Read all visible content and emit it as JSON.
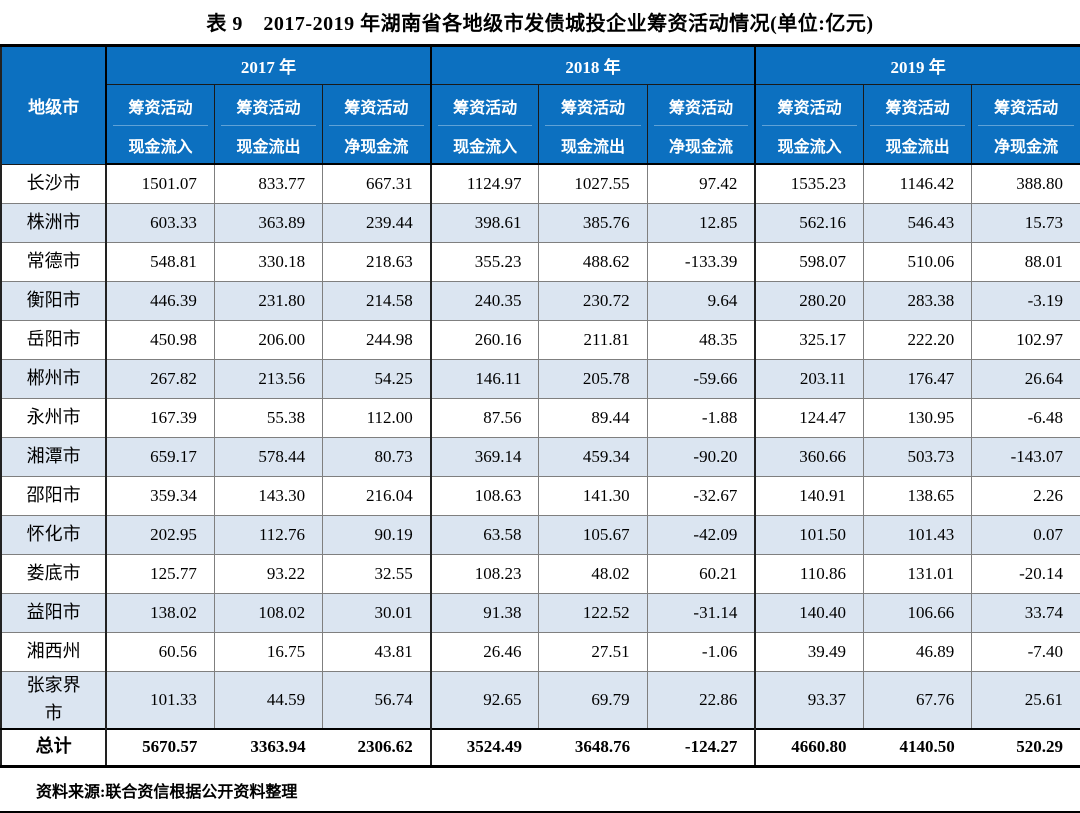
{
  "title": "表 9　2017-2019 年湖南省各地级市发债城投企业筹资活动情况(单位:亿元)",
  "colors": {
    "header_blue": "#0C70C0",
    "stripe_blue": "#DBE5F1",
    "grid_gray": "#7f7f7f",
    "border_dark": "#000000"
  },
  "table": {
    "city_header": "地级市",
    "years": [
      "2017 年",
      "2018 年",
      "2019 年"
    ],
    "sub_headers": [
      {
        "line1": "筹资活动",
        "line2": "现金流入"
      },
      {
        "line1": "筹资活动",
        "line2": "现金流出"
      },
      {
        "line1": "筹资活动",
        "line2": "净现金流"
      }
    ],
    "rows": [
      {
        "city": "长沙市",
        "values": [
          "1501.07",
          "833.77",
          "667.31",
          "1124.97",
          "1027.55",
          "97.42",
          "1535.23",
          "1146.42",
          "388.80"
        ]
      },
      {
        "city": "株洲市",
        "values": [
          "603.33",
          "363.89",
          "239.44",
          "398.61",
          "385.76",
          "12.85",
          "562.16",
          "546.43",
          "15.73"
        ]
      },
      {
        "city": "常德市",
        "values": [
          "548.81",
          "330.18",
          "218.63",
          "355.23",
          "488.62",
          "-133.39",
          "598.07",
          "510.06",
          "88.01"
        ]
      },
      {
        "city": "衡阳市",
        "values": [
          "446.39",
          "231.80",
          "214.58",
          "240.35",
          "230.72",
          "9.64",
          "280.20",
          "283.38",
          "-3.19"
        ]
      },
      {
        "city": "岳阳市",
        "values": [
          "450.98",
          "206.00",
          "244.98",
          "260.16",
          "211.81",
          "48.35",
          "325.17",
          "222.20",
          "102.97"
        ]
      },
      {
        "city": "郴州市",
        "values": [
          "267.82",
          "213.56",
          "54.25",
          "146.11",
          "205.78",
          "-59.66",
          "203.11",
          "176.47",
          "26.64"
        ]
      },
      {
        "city": "永州市",
        "values": [
          "167.39",
          "55.38",
          "112.00",
          "87.56",
          "89.44",
          "-1.88",
          "124.47",
          "130.95",
          "-6.48"
        ]
      },
      {
        "city": "湘潭市",
        "values": [
          "659.17",
          "578.44",
          "80.73",
          "369.14",
          "459.34",
          "-90.20",
          "360.66",
          "503.73",
          "-143.07"
        ]
      },
      {
        "city": "邵阳市",
        "values": [
          "359.34",
          "143.30",
          "216.04",
          "108.63",
          "141.30",
          "-32.67",
          "140.91",
          "138.65",
          "2.26"
        ]
      },
      {
        "city": "怀化市",
        "values": [
          "202.95",
          "112.76",
          "90.19",
          "63.58",
          "105.67",
          "-42.09",
          "101.50",
          "101.43",
          "0.07"
        ]
      },
      {
        "city": "娄底市",
        "values": [
          "125.77",
          "93.22",
          "32.55",
          "108.23",
          "48.02",
          "60.21",
          "110.86",
          "131.01",
          "-20.14"
        ]
      },
      {
        "city": "益阳市",
        "values": [
          "138.02",
          "108.02",
          "30.01",
          "91.38",
          "122.52",
          "-31.14",
          "140.40",
          "106.66",
          "33.74"
        ]
      },
      {
        "city": "湘西州",
        "values": [
          "60.56",
          "16.75",
          "43.81",
          "26.46",
          "27.51",
          "-1.06",
          "39.49",
          "46.89",
          "-7.40"
        ]
      },
      {
        "city": "张家界市",
        "values": [
          "101.33",
          "44.59",
          "56.74",
          "92.65",
          "69.79",
          "22.86",
          "93.37",
          "67.76",
          "25.61"
        ]
      }
    ],
    "total": {
      "label": "总计",
      "values": [
        "5670.57",
        "3363.94",
        "2306.62",
        "3524.49",
        "3648.76",
        "-124.27",
        "4660.80",
        "4140.50",
        "520.29"
      ]
    }
  },
  "source": "资料来源:联合资信根据公开资料整理"
}
